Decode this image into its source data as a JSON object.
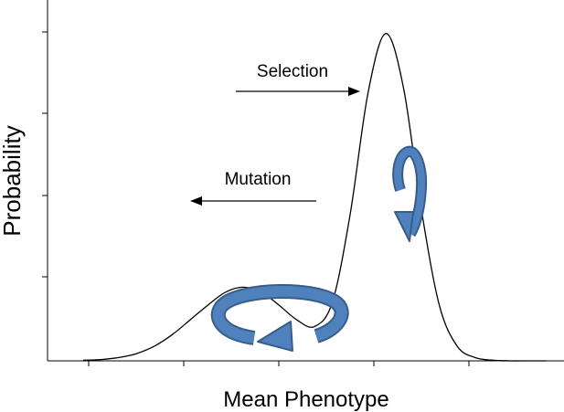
{
  "chart_data": {
    "type": "line",
    "title": "",
    "xlabel": "Mean Phenotype",
    "ylabel": "Probability",
    "grid": false,
    "legend": "none",
    "x": [
      -1.0,
      -0.8,
      -0.6,
      -0.4,
      -0.2,
      0.0,
      0.2,
      0.4,
      0.6,
      0.8,
      1.0,
      1.2,
      1.4,
      1.6,
      1.8,
      2.0,
      2.2,
      2.4,
      2.6,
      2.8,
      3.0,
      3.2,
      3.4,
      3.6,
      3.8,
      4.0,
      4.2
    ],
    "series": [
      {
        "values": [
          0.002,
          0.004,
          0.01,
          0.022,
          0.045,
          0.08,
          0.125,
          0.17,
          0.21,
          0.225,
          0.21,
          0.17,
          0.125,
          0.105,
          0.18,
          0.45,
          0.82,
          1.0,
          0.83,
          0.46,
          0.17,
          0.045,
          0.01,
          0.002,
          0.0,
          0.0,
          0.0
        ]
      }
    ],
    "xlim": [
      -1.4,
      4.4
    ],
    "ylim": [
      0,
      1.08
    ],
    "annotations": [
      {
        "text": "Selection",
        "arrow": "right"
      },
      {
        "text": "Mutation",
        "arrow": "left"
      }
    ],
    "cycle_arrows": [
      "clockwise loop at lower peak",
      "loop at higher peak"
    ],
    "colors": {
      "curve": "#000000",
      "cycle_fill": "#4f81bd",
      "cycle_stroke": "#385d8a"
    }
  }
}
